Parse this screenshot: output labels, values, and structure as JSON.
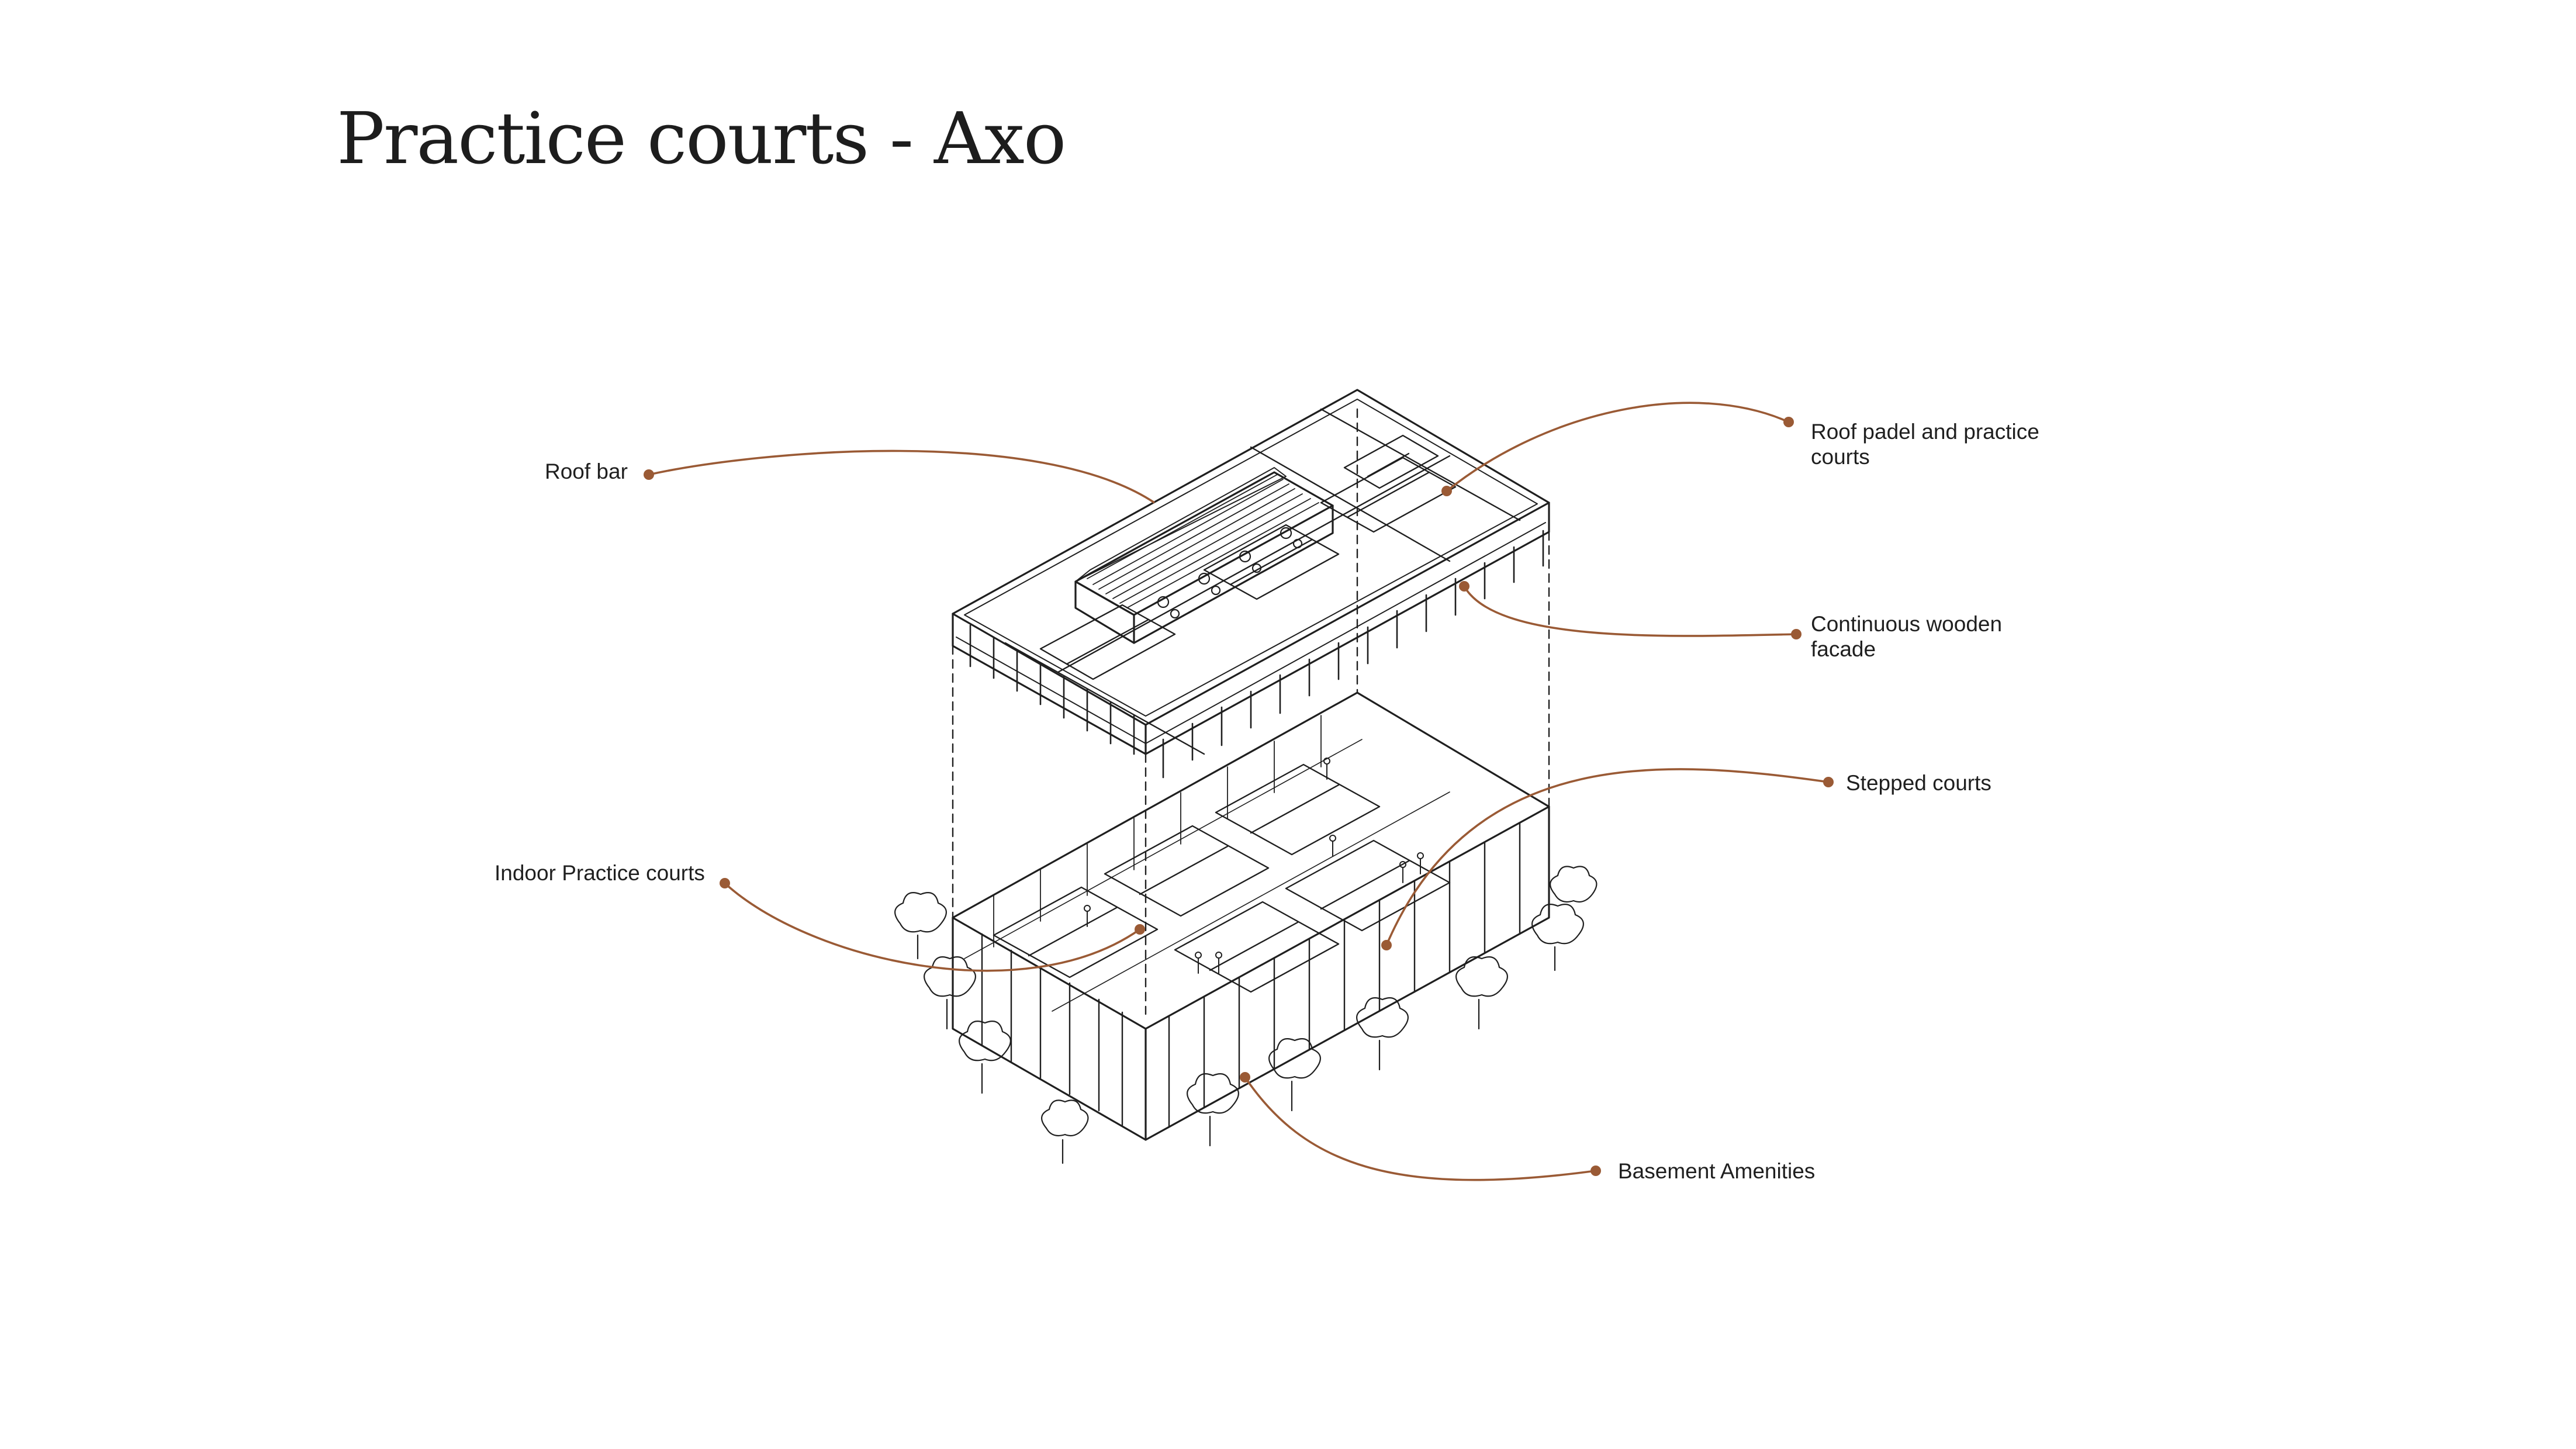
{
  "title": "Practice courts - Axo",
  "colors": {
    "leader": "#9a5a35",
    "sketch": "#1f1f1f",
    "background": "#ffffff"
  },
  "labels": {
    "roof_bar": "Roof bar",
    "roof_padel": "Roof padel and practice\ncourts",
    "wooden_facade": "Continuous wooden\nfacade",
    "stepped_courts": "Stepped courts",
    "indoor_practice": "Indoor Practice courts",
    "basement": "Basement Amenities"
  }
}
